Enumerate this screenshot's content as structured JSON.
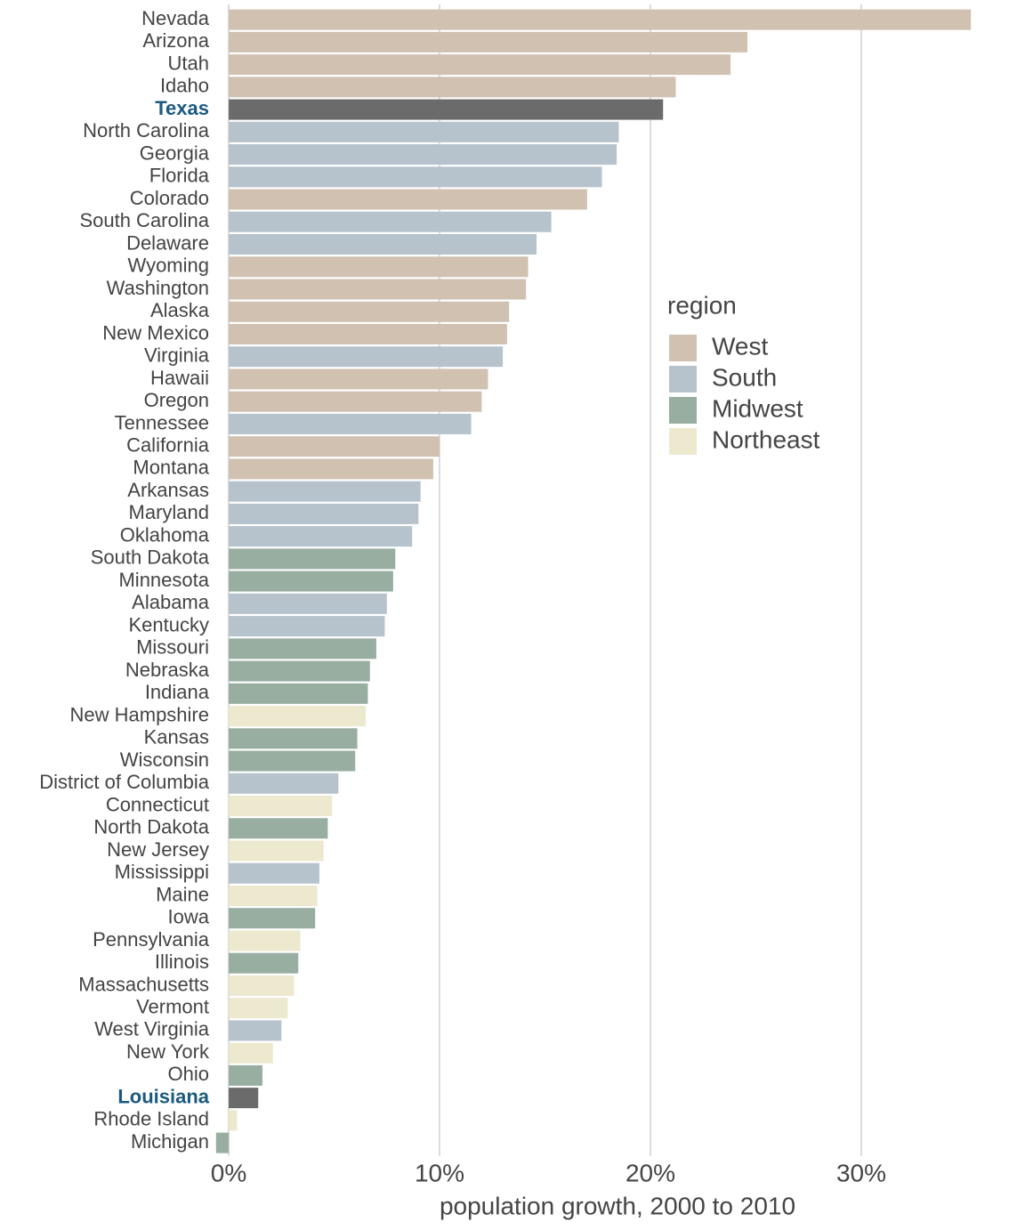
{
  "chart_data": {
    "type": "barh",
    "categories": [
      "Nevada",
      "Arizona",
      "Utah",
      "Idaho",
      "Texas",
      "North Carolina",
      "Georgia",
      "Florida",
      "Colorado",
      "South Carolina",
      "Delaware",
      "Wyoming",
      "Washington",
      "Alaska",
      "New Mexico",
      "Virginia",
      "Hawaii",
      "Oregon",
      "Tennessee",
      "California",
      "Montana",
      "Arkansas",
      "Maryland",
      "Oklahoma",
      "South Dakota",
      "Minnesota",
      "Alabama",
      "Kentucky",
      "Missouri",
      "Nebraska",
      "Indiana",
      "New Hampshire",
      "Kansas",
      "Wisconsin",
      "District of Columbia",
      "Connecticut",
      "North Dakota",
      "New Jersey",
      "Mississippi",
      "Maine",
      "Iowa",
      "Pennsylvania",
      "Illinois",
      "Massachusetts",
      "Vermont",
      "West Virginia",
      "New York",
      "Ohio",
      "Louisiana",
      "Rhode Island",
      "Michigan"
    ],
    "series": [
      {
        "name": "West",
        "color": "#d0c1b1",
        "values": [
          35.2,
          24.6,
          23.8,
          21.2,
          null,
          null,
          null,
          null,
          17.0,
          null,
          null,
          14.2,
          14.1,
          13.3,
          13.2,
          null,
          12.3,
          12.0,
          null,
          10.0,
          9.7,
          null,
          null,
          null,
          null,
          null,
          null,
          null,
          null,
          null,
          null,
          null,
          null,
          null,
          null,
          null,
          null,
          null,
          null,
          null,
          null,
          null,
          null,
          null,
          null,
          null,
          null,
          null,
          null,
          null,
          null
        ]
      },
      {
        "name": "South",
        "color": "#b6c2cc",
        "values": [
          null,
          null,
          null,
          null,
          20.6,
          18.5,
          18.4,
          17.7,
          null,
          15.3,
          14.6,
          null,
          null,
          null,
          null,
          13.0,
          null,
          null,
          11.5,
          null,
          null,
          9.1,
          9.0,
          8.7,
          null,
          null,
          7.5,
          7.4,
          null,
          null,
          null,
          null,
          null,
          null,
          5.2,
          null,
          null,
          null,
          4.3,
          null,
          null,
          null,
          null,
          null,
          null,
          2.5,
          null,
          null,
          1.4,
          null,
          null
        ]
      },
      {
        "name": "Midwest",
        "color": "#98aea1",
        "values": [
          null,
          null,
          null,
          null,
          null,
          null,
          null,
          null,
          null,
          null,
          null,
          null,
          null,
          null,
          null,
          null,
          null,
          null,
          null,
          null,
          null,
          null,
          null,
          null,
          7.9,
          7.8,
          null,
          null,
          7.0,
          6.7,
          6.6,
          null,
          6.1,
          6.0,
          null,
          null,
          4.7,
          null,
          null,
          null,
          4.1,
          null,
          3.3,
          null,
          null,
          null,
          null,
          1.6,
          null,
          null,
          -0.6
        ]
      },
      {
        "name": "Northeast",
        "color": "#ece9cf",
        "values": [
          null,
          null,
          null,
          null,
          null,
          null,
          null,
          null,
          null,
          null,
          null,
          null,
          null,
          null,
          null,
          null,
          null,
          null,
          null,
          null,
          null,
          null,
          null,
          null,
          null,
          null,
          null,
          null,
          null,
          null,
          null,
          6.5,
          null,
          null,
          null,
          4.9,
          null,
          4.5,
          null,
          4.2,
          null,
          3.4,
          null,
          3.1,
          2.8,
          null,
          2.1,
          null,
          null,
          0.4,
          null
        ]
      }
    ],
    "highlight": [
      4,
      48
    ],
    "highlight_color": "#6b6b6b",
    "highlight_label_color": "#1a5a80",
    "legend_title": "region",
    "xlabel": "population growth, 2000 to 2010",
    "xlim": [
      -0.9,
      36.9
    ],
    "xticks": [
      {
        "value": 0,
        "label": "0%"
      },
      {
        "value": 10,
        "label": "10%"
      },
      {
        "value": 20,
        "label": "20%"
      },
      {
        "value": 30,
        "label": "30%"
      }
    ],
    "grid": true
  }
}
